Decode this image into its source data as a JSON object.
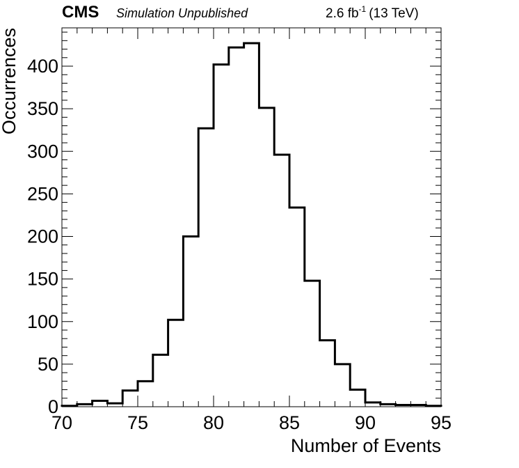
{
  "header": {
    "experiment": "CMS",
    "status": "Simulation Unpublished",
    "lumi_value": "2.6 fb",
    "lumi_exponent": "-1",
    "energy": "(13 TeV)"
  },
  "chart_data": {
    "type": "bar",
    "histogram": true,
    "title": "",
    "xlabel": "Number of Events",
    "ylabel": "Occurrences",
    "xlim": [
      70,
      95
    ],
    "ylim": [
      0,
      445
    ],
    "x_ticks": [
      70,
      75,
      80,
      85,
      90,
      95
    ],
    "y_ticks": [
      0,
      50,
      100,
      150,
      200,
      250,
      300,
      350,
      400
    ],
    "bin_edges": [
      70,
      71,
      72,
      73,
      74,
      75,
      76,
      77,
      78,
      79,
      80,
      81,
      82,
      83,
      84,
      85,
      86,
      87,
      88,
      89,
      90,
      91,
      92,
      93,
      94,
      95
    ],
    "values": [
      1,
      3,
      7,
      4,
      19,
      30,
      61,
      102,
      200,
      327,
      402,
      422,
      427,
      351,
      296,
      234,
      148,
      78,
      50,
      20,
      5,
      3,
      2,
      2,
      1
    ],
    "line_color": "#000000",
    "grid": false,
    "legend": "none"
  }
}
